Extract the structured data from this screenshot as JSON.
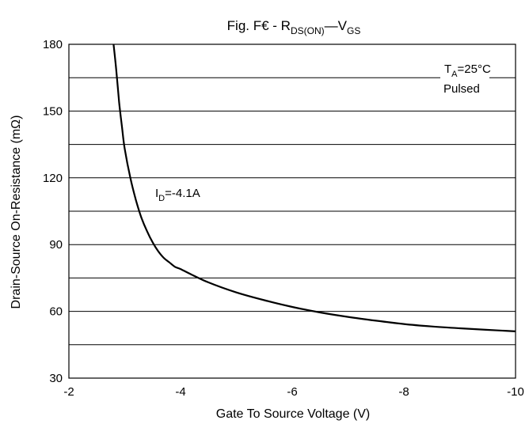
{
  "chart_data": {
    "type": "line",
    "title": {
      "prefix": "Fig. F€ - R",
      "sub1": "DS(ON)",
      "dash": "—V",
      "sub2": "GS"
    },
    "xlabel": "Gate To Source Voltage (V)",
    "ylabel": "Drain-Source On-Resistance (mΩ)",
    "xlim": [
      -2,
      -10
    ],
    "ylim": [
      30,
      180
    ],
    "x_ticks": [
      -2,
      -4,
      -6,
      -8,
      -10
    ],
    "x_tick_labels": [
      "-2",
      "-4",
      "-6",
      "-8",
      "-10"
    ],
    "y_ticks": [
      30,
      60,
      90,
      120,
      150,
      180
    ],
    "y_tick_labels": [
      "30",
      "60",
      "90",
      "120",
      "150",
      "180"
    ],
    "grid": true,
    "series": [
      {
        "x": [
          -2.8,
          -2.85,
          -2.9,
          -2.95,
          -3.0,
          -3.1,
          -3.2,
          -3.3,
          -3.4,
          -3.5,
          -3.6,
          -3.7,
          -3.8,
          -3.9,
          -4.0,
          -4.2,
          -4.5,
          -5.0,
          -5.5,
          -6.0,
          -6.5,
          -7.0,
          -7.5,
          -8.0,
          -8.5,
          -9.0,
          -9.5,
          -10.0
        ],
        "y": [
          180,
          168,
          154,
          143,
          133,
          120,
          110,
          102,
          96,
          91,
          87,
          84,
          82,
          80,
          79,
          76.5,
          73,
          68.5,
          65,
          62,
          59.5,
          57.5,
          55.8,
          54.3,
          53.2,
          52.4,
          51.7,
          51
        ]
      }
    ],
    "annotations": {
      "current": {
        "prefix": "I",
        "sub": "D",
        "suffix": "=-4.1A"
      },
      "temp": {
        "prefix": "T",
        "sub": "A",
        "suffix": "=25°C"
      },
      "mode": "Pulsed"
    }
  }
}
